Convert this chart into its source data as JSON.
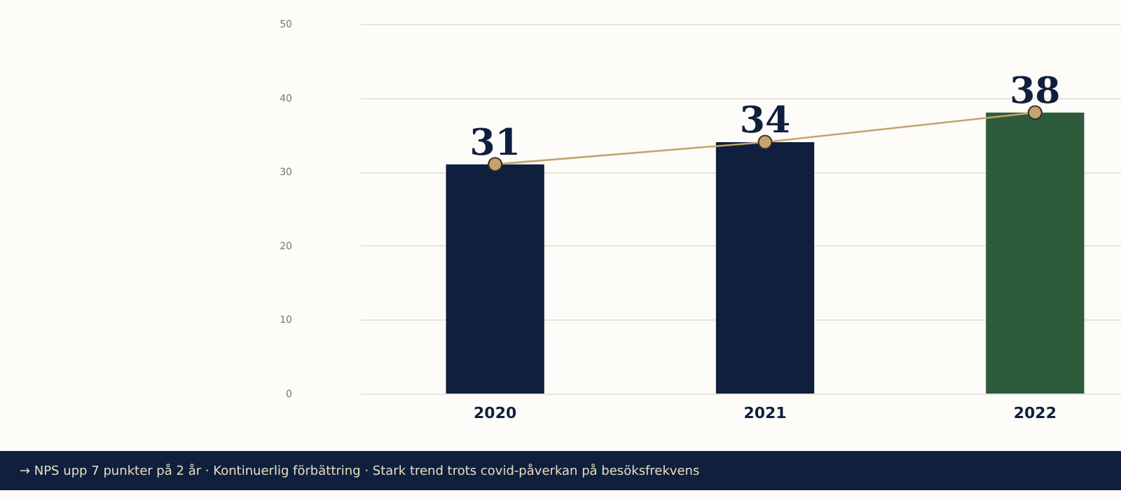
{
  "chart_data": {
    "type": "bar",
    "categories": [
      "2020",
      "2021",
      "2022"
    ],
    "series": [
      {
        "colors": [
          "#0f1f3d",
          "#0f1f3d",
          "#2e5b3c"
        ],
        "values": [
          31,
          34,
          38
        ]
      },
      {
        "type": "line",
        "color": "#c4a46e",
        "marker": "circle",
        "values": [
          31,
          34,
          38
        ],
        "value_labels": [
          "31",
          "34",
          "38"
        ]
      }
    ],
    "ylim": [
      0,
      50
    ],
    "yticks": [
      0,
      10,
      20,
      30,
      40,
      50
    ],
    "grid": "y",
    "legend": false,
    "annotations": [
      "→ NPS upp 7 punkter på 2 år · Kontinuerlig förbättring · Stark trend trots covid-påverkan på besöksfrekvens"
    ]
  }
}
